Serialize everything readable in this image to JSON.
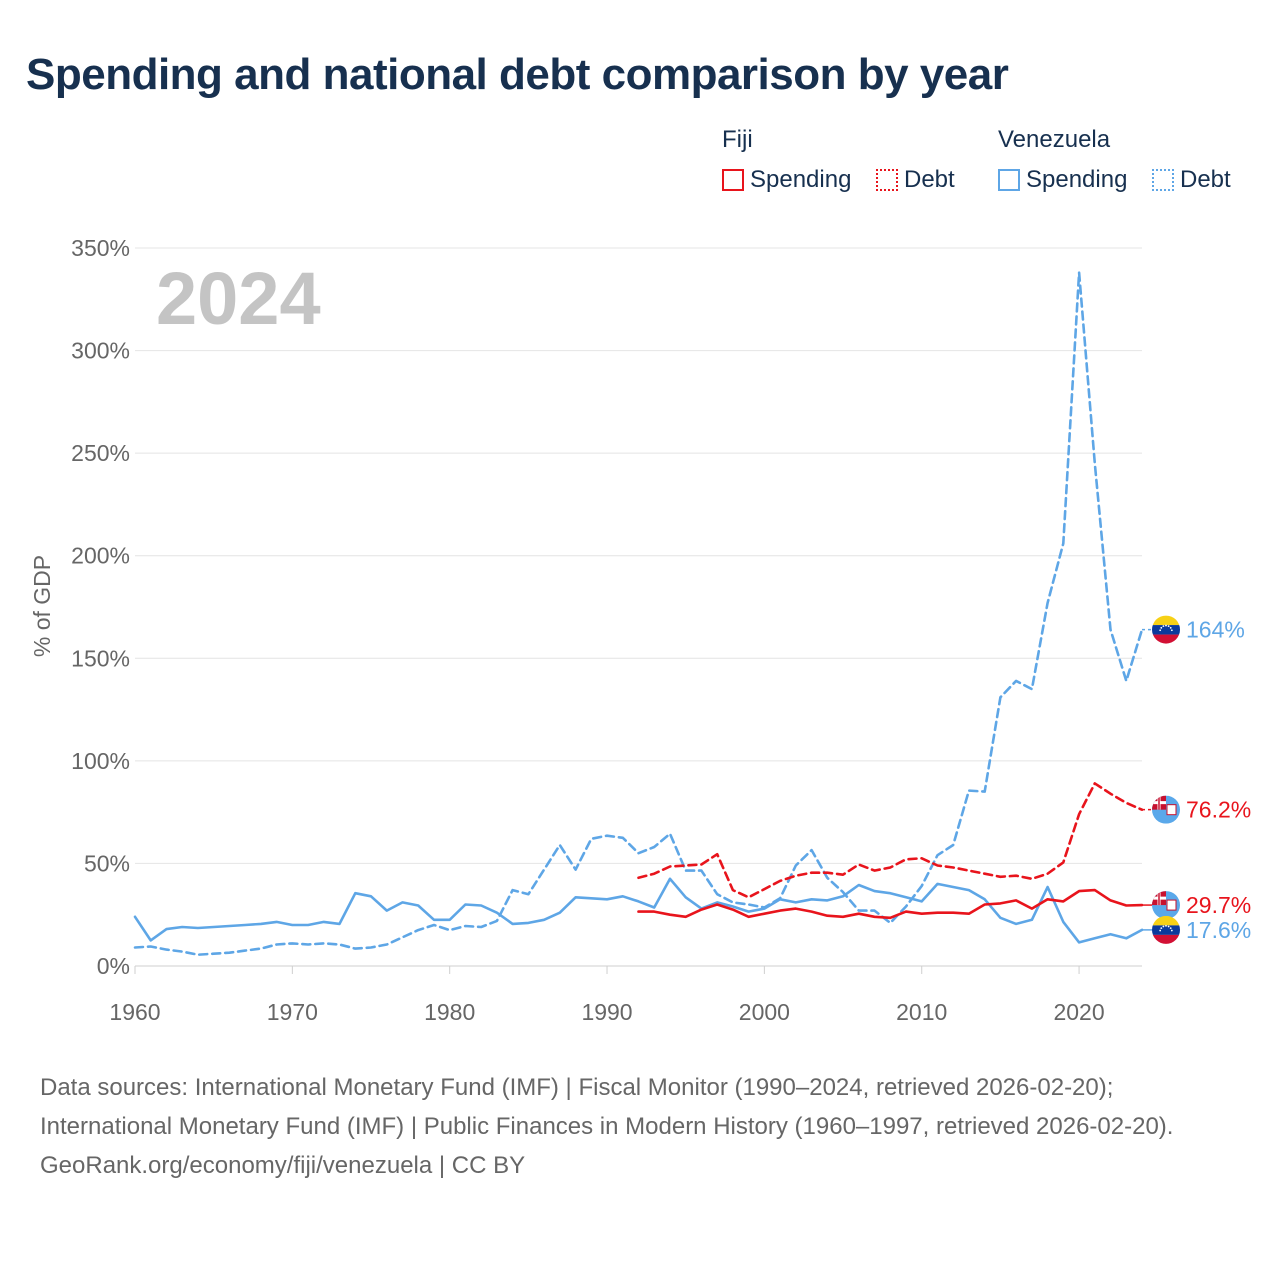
{
  "title": "Spending and national debt comparison by year",
  "legend": {
    "groups": [
      {
        "name": "Fiji",
        "color": "#e8141c",
        "items": [
          {
            "label": "Spending",
            "style": "solid"
          },
          {
            "label": "Debt",
            "style": "dotted"
          }
        ]
      },
      {
        "name": "Venezuela",
        "color": "#5ea6e6",
        "items": [
          {
            "label": "Spending",
            "style": "solid"
          },
          {
            "label": "Debt",
            "style": "dotted"
          }
        ]
      }
    ]
  },
  "chart_data": {
    "type": "line",
    "title": "Spending and national debt comparison by year",
    "year_badge": "2024",
    "xlabel": "",
    "ylabel": "% of GDP",
    "xlim": [
      1960,
      2024
    ],
    "ylim": [
      0,
      350
    ],
    "x_ticks": [
      1960,
      1970,
      1980,
      1990,
      2000,
      2010,
      2020
    ],
    "y_ticks": [
      0,
      50,
      100,
      150,
      200,
      250,
      300,
      350
    ],
    "y_tick_labels": [
      "0%",
      "50%",
      "100%",
      "150%",
      "200%",
      "250%",
      "300%",
      "350%"
    ],
    "series": [
      {
        "name": "Venezuela Debt",
        "country": "Venezuela",
        "measure": "Debt",
        "color": "#5ea6e6",
        "dash": "8,5",
        "x": [
          1960,
          1961,
          1962,
          1963,
          1964,
          1965,
          1966,
          1967,
          1968,
          1969,
          1970,
          1971,
          1972,
          1973,
          1974,
          1975,
          1976,
          1977,
          1978,
          1979,
          1980,
          1981,
          1982,
          1983,
          1984,
          1985,
          1986,
          1987,
          1988,
          1989,
          1990,
          1991,
          1992,
          1993,
          1994,
          1995,
          1996,
          1997,
          1998,
          1999,
          2000,
          2001,
          2002,
          2003,
          2004,
          2005,
          2006,
          2007,
          2008,
          2009,
          2010,
          2011,
          2012,
          2013,
          2014,
          2015,
          2016,
          2017,
          2018,
          2019,
          2020,
          2021,
          2022,
          2023,
          2024
        ],
        "values": [
          9,
          9.5,
          8,
          7,
          5.5,
          6,
          6.5,
          7.5,
          8.5,
          10.5,
          11,
          10.5,
          11,
          10.5,
          8.5,
          9,
          10.5,
          14,
          17.5,
          20,
          17.5,
          19.5,
          19,
          22,
          37,
          35,
          47,
          59,
          47,
          62,
          63.5,
          62.5,
          55,
          58,
          64.5,
          46.5,
          46.5,
          35,
          31,
          30,
          28.5,
          33,
          49,
          56.5,
          43,
          36,
          27,
          27,
          21,
          29,
          39,
          54,
          59,
          85.5,
          85,
          131,
          139,
          135,
          177,
          206,
          338,
          245,
          164,
          139,
          164
        ]
      },
      {
        "name": "Fiji Debt",
        "country": "Fiji",
        "measure": "Debt",
        "color": "#e8141c",
        "dash": "8,5",
        "x": [
          1992,
          1993,
          1994,
          1995,
          1996,
          1997,
          1998,
          1999,
          2000,
          2001,
          2002,
          2003,
          2004,
          2005,
          2006,
          2007,
          2008,
          2009,
          2010,
          2011,
          2012,
          2013,
          2014,
          2015,
          2016,
          2017,
          2018,
          2019,
          2020,
          2021,
          2022,
          2023,
          2024
        ],
        "values": [
          43,
          45,
          48.5,
          49,
          49.5,
          54.5,
          37,
          33.5,
          37.5,
          41.5,
          44,
          45.5,
          45.5,
          44.5,
          49.5,
          46.5,
          48,
          52,
          52.5,
          49,
          48,
          46.5,
          45,
          43.5,
          44,
          42.5,
          45,
          50.5,
          74,
          89,
          84,
          79.5,
          76.2
        ]
      },
      {
        "name": "Venezuela Spending",
        "country": "Venezuela",
        "measure": "Spending",
        "color": "#5ea6e6",
        "dash": "",
        "x": [
          1960,
          1961,
          1962,
          1963,
          1964,
          1965,
          1966,
          1967,
          1968,
          1969,
          1970,
          1971,
          1972,
          1973,
          1974,
          1975,
          1976,
          1977,
          1978,
          1979,
          1980,
          1981,
          1982,
          1983,
          1984,
          1985,
          1986,
          1987,
          1988,
          1989,
          1990,
          1991,
          1992,
          1993,
          1994,
          1995,
          1996,
          1997,
          1998,
          1999,
          2000,
          2001,
          2002,
          2003,
          2004,
          2005,
          2006,
          2007,
          2008,
          2009,
          2010,
          2011,
          2012,
          2013,
          2014,
          2015,
          2016,
          2017,
          2018,
          2019,
          2020,
          2021,
          2022,
          2023,
          2024
        ],
        "values": [
          24,
          12.5,
          18,
          19,
          18.5,
          19,
          19.5,
          20,
          20.5,
          21.5,
          20,
          20,
          21.5,
          20.5,
          35.5,
          34,
          27,
          31,
          29.5,
          22.5,
          22.5,
          30,
          29.5,
          26,
          20.5,
          21,
          22.5,
          26,
          33.5,
          33,
          32.5,
          34,
          31.5,
          28.5,
          42.5,
          33.5,
          28,
          31,
          29,
          26.5,
          28,
          32.5,
          31,
          32.5,
          32,
          34,
          39.5,
          36.5,
          35.5,
          33.5,
          31.5,
          40,
          38.5,
          37,
          32.5,
          23.5,
          20.5,
          22.5,
          38.5,
          21.5,
          11.5,
          13.5,
          15.5,
          13.5,
          17.6
        ]
      },
      {
        "name": "Fiji Spending",
        "country": "Fiji",
        "measure": "Spending",
        "color": "#e8141c",
        "dash": "",
        "x": [
          1992,
          1993,
          1994,
          1995,
          1996,
          1997,
          1998,
          1999,
          2000,
          2001,
          2002,
          2003,
          2004,
          2005,
          2006,
          2007,
          2008,
          2009,
          2010,
          2011,
          2012,
          2013,
          2014,
          2015,
          2016,
          2017,
          2018,
          2019,
          2020,
          2021,
          2022,
          2023,
          2024
        ],
        "values": [
          26.5,
          26.5,
          25,
          24,
          27.5,
          30,
          27.5,
          24,
          25.5,
          27,
          28,
          26.5,
          24.5,
          24,
          25.5,
          24,
          23.5,
          26.5,
          25.5,
          26,
          26,
          25.5,
          30,
          30.5,
          32,
          28,
          32.5,
          31.5,
          36.5,
          37,
          32,
          29.5,
          29.7
        ]
      }
    ],
    "end_labels": [
      {
        "series": "Venezuela Debt",
        "text": "164%",
        "country": "Venezuela"
      },
      {
        "series": "Fiji Debt",
        "text": "76.2%",
        "country": "Fiji"
      },
      {
        "series": "Fiji Spending",
        "text": "29.7%",
        "country": "Fiji"
      },
      {
        "series": "Venezuela Spending",
        "text": "17.6%",
        "country": "Venezuela"
      }
    ]
  },
  "footer": {
    "sources": "Data sources: International Monetary Fund (IMF) | Fiscal Monitor (1990–2024, retrieved 2026-02-20); International Monetary Fund (IMF) | Public Finances in Modern History (1960–1997, retrieved 2026-02-20).",
    "attribution": "GeoRank.org/economy/fiji/venezuela | CC BY"
  }
}
